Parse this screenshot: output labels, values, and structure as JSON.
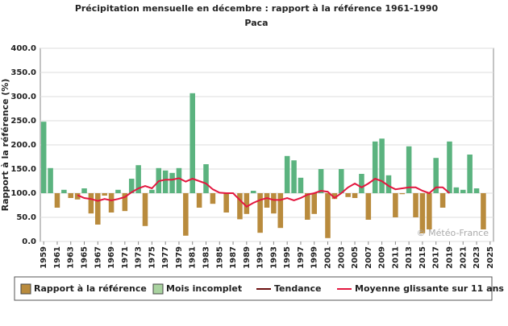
{
  "chart_data": {
    "type": "bar",
    "title": "Précipitation mensuelle en décembre : rapport à la référence 1961-1990",
    "subtitle": "Paca",
    "y_label": "Rapport à la référence (%)",
    "watermark": "© Météo-France",
    "bar_base": 100,
    "x": [
      1959,
      1960,
      1961,
      1962,
      1963,
      1964,
      1965,
      1966,
      1967,
      1968,
      1969,
      1970,
      1971,
      1972,
      1973,
      1974,
      1975,
      1976,
      1977,
      1978,
      1979,
      1980,
      1981,
      1982,
      1983,
      1984,
      1985,
      1986,
      1987,
      1988,
      1989,
      1990,
      1991,
      1992,
      1993,
      1994,
      1995,
      1996,
      1997,
      1998,
      1999,
      2000,
      2001,
      2002,
      2003,
      2004,
      2005,
      2006,
      2007,
      2008,
      2009,
      2010,
      2011,
      2012,
      2013,
      2014,
      2015,
      2016,
      2017,
      2018,
      2019,
      2020,
      2021,
      2022,
      2023,
      2024,
      2025
    ],
    "xlim": [
      1958.5,
      2025.5
    ],
    "xticks": [
      1959,
      1961,
      1963,
      1965,
      1967,
      1969,
      1971,
      1973,
      1975,
      1977,
      1979,
      1981,
      1983,
      1985,
      1987,
      1989,
      1991,
      1993,
      1995,
      1997,
      1999,
      2001,
      2003,
      2005,
      2007,
      2009,
      2011,
      2013,
      2015,
      2017,
      2019,
      2021,
      2023,
      2025
    ],
    "ylim": [
      0,
      400
    ],
    "yticks": [
      {
        "value": 0,
        "label": "0.0"
      },
      {
        "value": 50,
        "label": "50.0"
      },
      {
        "value": 100,
        "label": "100.0"
      },
      {
        "value": 150,
        "label": "150.0"
      },
      {
        "value": 200,
        "label": "200.0"
      },
      {
        "value": 250,
        "label": "250.0"
      },
      {
        "value": 300,
        "label": "300.0"
      },
      {
        "value": 350,
        "label": "350.0"
      },
      {
        "value": 400,
        "label": "400.0"
      }
    ],
    "grid": true,
    "series": [
      {
        "name": "Rapport à la référence",
        "kind": "bar",
        "color": "#b98b3d",
        "color_above": "#5bb37f",
        "values": [
          248,
          152,
          70,
          107,
          90,
          87,
          110,
          58,
          35,
          95,
          60,
          107,
          63,
          130,
          158,
          32,
          107,
          152,
          147,
          142,
          152,
          12,
          307,
          70,
          160,
          78,
          100,
          60,
          100,
          46,
          57,
          105,
          18,
          70,
          58,
          28,
          177,
          168,
          132,
          45,
          57,
          150,
          7,
          88,
          150,
          92,
          90,
          140,
          45,
          207,
          213,
          137,
          50,
          98,
          197,
          50,
          17,
          25,
          173,
          70,
          207,
          112,
          107,
          180,
          110,
          25,
          null
        ]
      },
      {
        "name": "Mois incomplet",
        "kind": "bar",
        "color": "#a9d3a0"
      },
      {
        "name": "Tendance",
        "kind": "line",
        "color": "#6b0f0f"
      },
      {
        "name": "Moyenne glissante sur 11 ans",
        "kind": "line",
        "color": "#e3173f",
        "values": [
          null,
          null,
          null,
          null,
          null,
          96,
          90,
          88,
          84,
          88,
          85,
          88,
          92,
          102,
          110,
          115,
          110,
          125,
          128,
          128,
          131,
          124,
          130,
          125,
          120,
          108,
          101,
          100,
          100,
          86,
          72,
          80,
          86,
          90,
          86,
          86,
          90,
          85,
          90,
          97,
          100,
          105,
          103,
          90,
          100,
          112,
          120,
          112,
          120,
          130,
          125,
          115,
          108,
          110,
          112,
          112,
          105,
          100,
          112,
          112,
          100,
          null,
          null,
          null,
          null,
          null,
          null
        ]
      }
    ]
  }
}
